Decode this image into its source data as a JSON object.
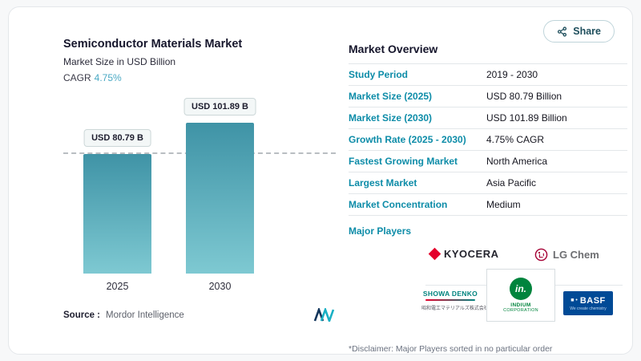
{
  "share": {
    "label": "Share"
  },
  "chart": {
    "title": "Semiconductor Materials Market",
    "subtitle": "Market Size in USD Billion",
    "cagr_label": "CAGR",
    "cagr_value": "4.75%",
    "source_label": "Source :",
    "source_value": "Mordor Intelligence"
  },
  "chart_data": {
    "type": "bar",
    "categories": [
      "2025",
      "2030"
    ],
    "values": [
      80.79,
      101.89
    ],
    "bar_labels": [
      "USD 80.79 B",
      "USD 101.89 B"
    ],
    "title": "Semiconductor Materials Market",
    "xlabel": "",
    "ylabel": "Market Size in USD Billion",
    "ylim": [
      0,
      110
    ],
    "reference_line_at": 80.79,
    "legend": "none",
    "grid": false
  },
  "overview": {
    "title": "Market Overview",
    "rows": [
      {
        "label": "Study Period",
        "value": "2019 - 2030"
      },
      {
        "label": "Market Size (2025)",
        "value": "USD 80.79 Billion"
      },
      {
        "label": "Market Size (2030)",
        "value": "USD 101.89 Billion"
      },
      {
        "label": "Growth Rate (2025 - 2030)",
        "value": "4.75% CAGR"
      },
      {
        "label": "Fastest Growing Market",
        "value": "North America"
      },
      {
        "label": "Largest Market",
        "value": "Asia Pacific"
      },
      {
        "label": "Market Concentration",
        "value": "Medium"
      }
    ],
    "major_players_label": "Major Players",
    "players": [
      {
        "name": "KYOCERA"
      },
      {
        "name": "LG Chem"
      },
      {
        "name": "SHOWA DENKO",
        "sub": "昭和電工マテリアルズ株式会社"
      },
      {
        "mark": "in.",
        "name": "INDIUM",
        "sub": "CORPORATION"
      },
      {
        "mark": "■ •",
        "name": "BASF",
        "sub": "We create chemistry"
      }
    ],
    "disclaimer": "*Disclaimer: Major Players sorted in no particular order"
  },
  "colors": {
    "accent_teal": "#0d8ca8",
    "cagr_value": "#4aa9c4",
    "bar_top": "#3f93a6",
    "bar_bottom": "#7ec9d2",
    "dash": "#b9bec2",
    "kyocera_red": "#e4002b",
    "lg_red": "#a50034",
    "basf_blue": "#004a96",
    "indium_green": "#00843d",
    "showa_teal": "#00837e"
  }
}
